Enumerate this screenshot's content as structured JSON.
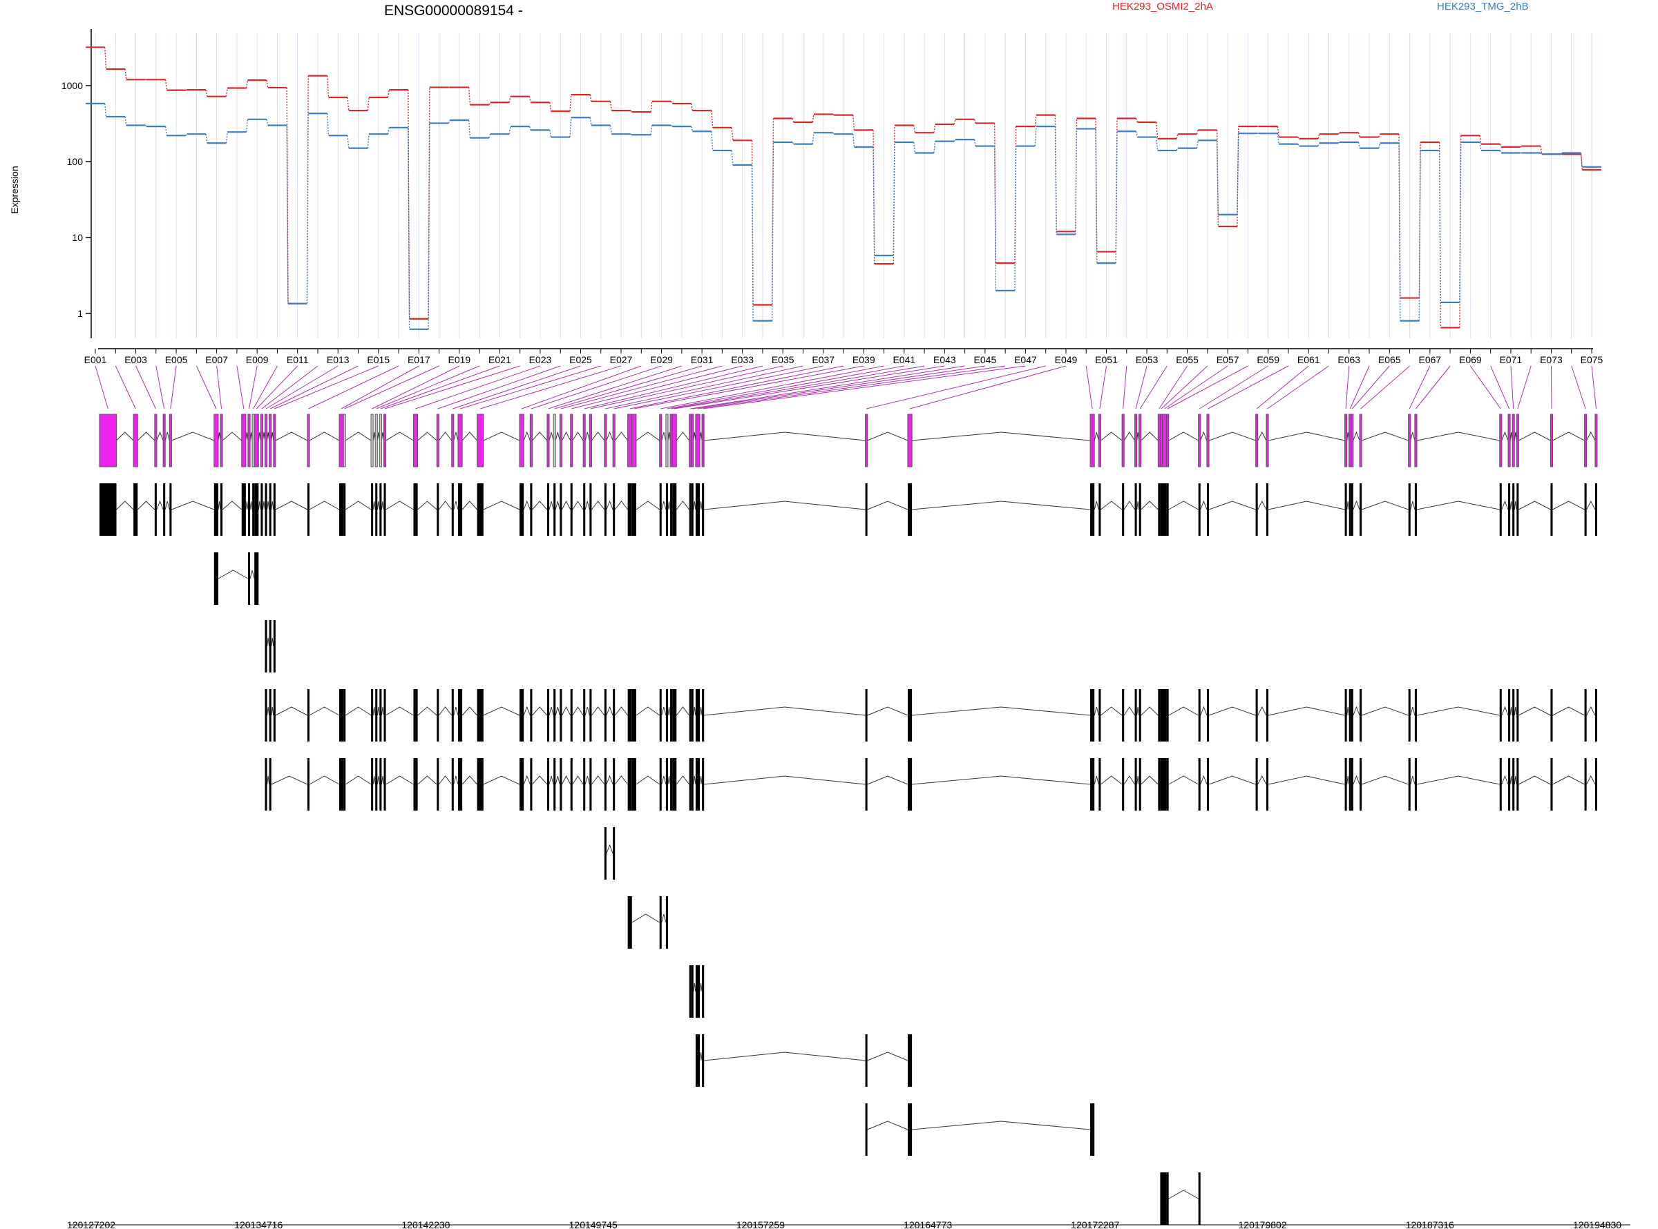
{
  "chart_data": {
    "type": "line",
    "title": "ENSG00000089154 -",
    "ylabel": "Expression",
    "yscale": "log",
    "ylim": [
      0.4,
      4500
    ],
    "yticks": [
      1,
      10,
      100,
      1000
    ],
    "colors": {
      "OSMI2": "#d62728",
      "TMG": "#3b7dbf",
      "exon": "#ee22ee",
      "exon_muted": "#d0d0d0",
      "connector": "#aa33aa",
      "track": "#000000"
    },
    "series": [
      {
        "name": "HEK293_OSMI2_2hA",
        "color": "#d62728",
        "values": [
          3200,
          1650,
          1200,
          1200,
          870,
          880,
          720,
          930,
          1180,
          940,
          1.35,
          1350,
          700,
          470,
          700,
          880,
          0.85,
          950,
          950,
          560,
          600,
          720,
          600,
          460,
          760,
          620,
          470,
          450,
          620,
          580,
          470,
          280,
          190,
          1.3,
          370,
          330,
          420,
          410,
          260,
          4.5,
          300,
          240,
          310,
          360,
          320,
          4.6,
          290,
          410,
          12,
          370,
          6.5,
          370,
          330,
          200,
          230,
          260,
          14,
          290,
          290,
          210,
          200,
          230,
          240,
          210,
          230,
          1.6,
          180,
          0.65,
          220,
          170,
          155,
          160,
          125,
          125,
          78
        ]
      },
      {
        "name": "HEK293_TMG_2hB",
        "color": "#3b7dbf",
        "values": [
          580,
          390,
          300,
          290,
          220,
          230,
          175,
          245,
          360,
          300,
          1.35,
          430,
          220,
          150,
          230,
          280,
          0.62,
          320,
          350,
          205,
          230,
          290,
          260,
          210,
          380,
          300,
          230,
          225,
          300,
          290,
          250,
          140,
          90,
          0.8,
          180,
          170,
          240,
          230,
          155,
          5.8,
          180,
          130,
          185,
          195,
          160,
          2.0,
          160,
          290,
          11,
          270,
          4.6,
          250,
          210,
          140,
          150,
          190,
          20,
          235,
          235,
          170,
          160,
          175,
          180,
          150,
          175,
          0.8,
          140,
          1.4,
          180,
          140,
          130,
          130,
          125,
          130,
          85
        ]
      }
    ],
    "exons": [
      "E001",
      "E002",
      "E003",
      "E004",
      "E005",
      "E006",
      "E007",
      "E008",
      "E009",
      "E010",
      "E011",
      "E012",
      "E013",
      "E014",
      "E015",
      "E016",
      "E017",
      "E018",
      "E019",
      "E020",
      "E021",
      "E022",
      "E023",
      "E024",
      "E025",
      "E026",
      "E027",
      "E028",
      "E029",
      "E030",
      "E031",
      "E032",
      "E033",
      "E034",
      "E035",
      "E036",
      "E037",
      "E038",
      "E039",
      "E040",
      "E041",
      "E042",
      "E043",
      "E044",
      "E045",
      "E046",
      "E047",
      "E048",
      "E049",
      "E050",
      "E051",
      "E052",
      "E053",
      "E054",
      "E055",
      "E056",
      "E057",
      "E058",
      "E059",
      "E060",
      "E061",
      "E062",
      "E063",
      "E064",
      "E065",
      "E066",
      "E067",
      "E068",
      "E069",
      "E070",
      "E071",
      "E072",
      "E073",
      "E074",
      "E075"
    ],
    "exon_axis_labels": [
      "E001",
      "E003",
      "E005",
      "E007",
      "E009",
      "E011",
      "E013",
      "E015",
      "E017",
      "E019",
      "E021",
      "E023",
      "E025",
      "E027",
      "E029",
      "E031",
      "E033",
      "E035",
      "E037",
      "E039",
      "E041",
      "E043",
      "E045",
      "E047",
      "E049",
      "E051",
      "E053",
      "E055",
      "E057",
      "E059",
      "E061",
      "E063",
      "E065",
      "E067",
      "E069",
      "E071",
      "E073",
      "E075"
    ],
    "exon_genomic": [
      [
        0,
        8
      ],
      [
        16,
        18
      ],
      [
        26,
        27
      ],
      [
        30,
        31
      ],
      [
        33,
        34
      ],
      [
        54,
        56
      ],
      [
        57,
        58
      ],
      [
        67,
        69
      ],
      [
        70,
        71
      ],
      [
        72,
        73
      ],
      [
        73,
        75
      ],
      [
        76,
        77
      ],
      [
        78,
        79
      ],
      [
        80,
        81
      ],
      [
        82,
        83
      ],
      [
        98,
        99
      ],
      [
        113,
        115
      ],
      [
        115,
        116
      ],
      [
        128,
        129
      ],
      [
        130,
        131
      ],
      [
        132,
        133
      ],
      [
        134,
        135
      ],
      [
        148,
        150
      ],
      [
        159,
        160
      ],
      [
        166,
        167
      ],
      [
        169,
        171
      ],
      [
        178,
        181
      ],
      [
        198,
        200
      ],
      [
        203,
        204
      ],
      [
        211,
        212
      ],
      [
        214,
        215
      ],
      [
        217,
        218
      ],
      [
        222,
        223
      ],
      [
        228,
        229
      ],
      [
        231,
        232
      ],
      [
        238,
        239
      ],
      [
        242,
        243
      ],
      [
        249,
        251
      ],
      [
        251,
        253
      ],
      [
        264,
        265
      ],
      [
        267,
        268
      ],
      [
        269,
        270
      ],
      [
        270,
        272
      ],
      [
        278,
        279
      ],
      [
        279,
        280
      ],
      [
        281,
        283
      ],
      [
        284,
        285
      ],
      [
        361,
        362
      ],
      [
        381,
        383
      ],
      [
        467,
        469
      ],
      [
        471,
        472
      ],
      [
        482,
        483
      ],
      [
        488,
        489
      ],
      [
        490,
        491
      ],
      [
        499,
        500
      ],
      [
        500,
        501
      ],
      [
        501,
        503
      ],
      [
        503,
        504
      ],
      [
        518,
        519
      ],
      [
        522,
        523
      ],
      [
        545,
        546
      ],
      [
        550,
        551
      ],
      [
        587,
        588
      ],
      [
        589,
        590
      ],
      [
        590,
        591
      ],
      [
        594,
        595
      ],
      [
        617,
        618
      ],
      [
        620,
        621
      ],
      [
        660,
        661
      ],
      [
        664,
        665
      ],
      [
        666,
        667
      ],
      [
        668,
        669
      ],
      [
        684,
        685
      ],
      [
        700,
        701
      ],
      [
        705,
        706
      ]
    ],
    "exon_fill": [
      "m",
      "m",
      "m",
      "m",
      "m",
      "m",
      "m",
      "m",
      "m",
      "g",
      "m",
      "m",
      "m",
      "m",
      "m",
      "m",
      "m",
      "g",
      "g",
      "g",
      "g",
      "m",
      "m",
      "m",
      "m",
      "m",
      "m",
      "m",
      "m",
      "m",
      "g",
      "m",
      "m",
      "m",
      "m",
      "m",
      "m",
      "m",
      "m",
      "m",
      "g",
      "m",
      "m",
      "m",
      "m",
      "m",
      "m",
      "m",
      "m",
      "m",
      "m",
      "m",
      "m",
      "m",
      "m",
      "m",
      "m",
      "m",
      "m",
      "m",
      "m",
      "m",
      "m",
      "m",
      "m",
      "m",
      "m",
      "m",
      "m",
      "m",
      "m",
      "m",
      "m",
      "m",
      "m"
    ],
    "transcripts": [
      [
        0,
        1,
        2,
        3,
        4,
        5,
        6,
        7,
        8,
        9,
        10,
        11,
        12,
        13,
        14,
        15,
        16,
        17,
        18,
        19,
        20,
        21,
        22,
        23,
        24,
        25,
        26,
        27,
        28,
        29,
        30,
        31,
        32,
        33,
        34,
        35,
        36,
        37,
        38,
        39,
        40,
        41,
        42,
        43,
        44,
        45,
        46,
        47,
        48,
        49,
        50,
        51,
        52,
        53,
        54,
        55,
        56,
        57,
        58,
        59,
        60,
        61,
        62,
        63,
        64,
        65,
        66,
        67,
        68,
        69,
        70,
        71,
        72,
        73,
        74
      ],
      [
        5,
        8,
        10
      ],
      [
        12,
        13,
        14
      ],
      [
        12,
        13,
        14,
        15,
        16,
        17,
        18,
        19,
        20,
        21,
        22,
        23,
        24,
        25,
        26,
        27,
        28,
        29,
        30,
        31,
        32,
        33,
        34,
        35,
        36,
        37,
        38,
        39,
        40,
        41,
        42,
        43,
        44,
        45,
        46,
        47,
        48,
        49,
        50,
        51,
        52,
        53,
        54,
        55,
        56,
        57,
        58,
        59,
        60,
        61,
        62,
        63,
        64,
        65,
        66,
        67,
        68,
        69,
        70,
        71,
        72,
        73,
        74
      ],
      [
        12,
        13,
        15,
        16,
        17,
        18,
        19,
        20,
        21,
        22,
        23,
        24,
        25,
        26,
        27,
        28,
        29,
        30,
        31,
        32,
        33,
        34,
        35,
        36,
        37,
        38,
        39,
        40,
        41,
        42,
        43,
        44,
        45,
        46,
        47,
        48,
        49,
        50,
        51,
        52,
        53,
        54,
        55,
        56,
        57,
        58,
        59,
        60,
        61,
        62,
        63,
        64,
        65,
        66,
        67,
        68,
        69,
        70,
        71,
        72,
        73,
        74
      ],
      [
        35,
        36
      ],
      [
        37,
        39,
        40
      ],
      [
        43,
        44,
        45,
        46
      ],
      [
        45,
        46,
        47,
        48
      ],
      [
        47,
        48,
        49
      ],
      [
        55,
        56,
        57,
        58
      ]
    ],
    "genomic_axis": {
      "start": 120127202,
      "end": 120194830,
      "tick_labels": [
        "120127202",
        "120134716",
        "120142230",
        "120149745",
        "120157259",
        "120164773",
        "120172287",
        "120179802",
        "120187316",
        "120194830"
      ]
    }
  }
}
